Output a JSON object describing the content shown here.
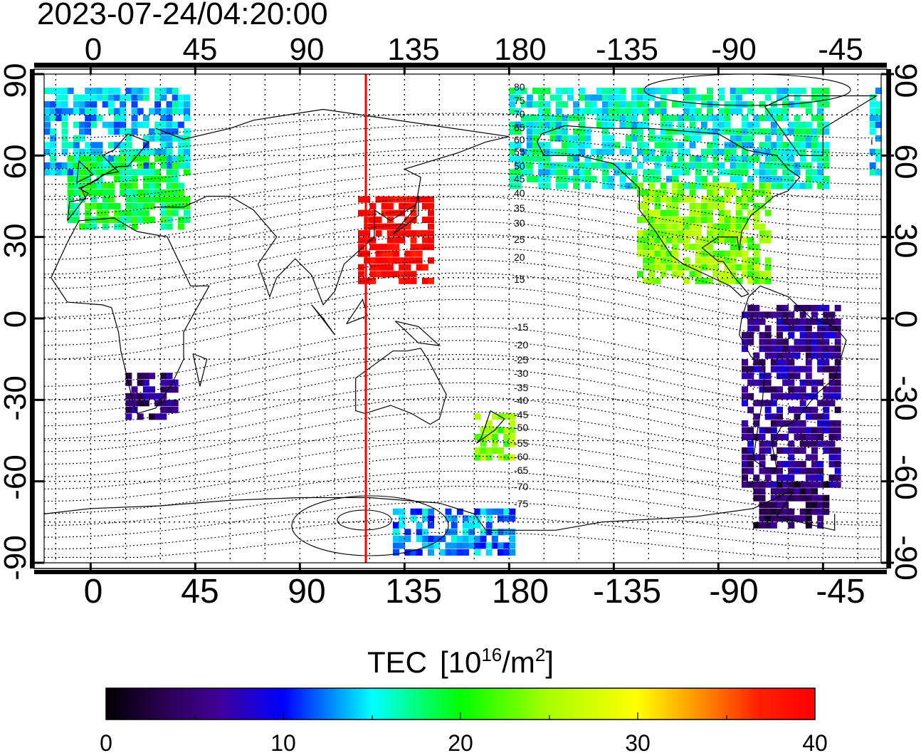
{
  "timestamp": "2023-07-24/04:20:00",
  "top_lon_ticks": [
    "0",
    "45",
    "90",
    "135",
    "180",
    "-135",
    "-90",
    "-45"
  ],
  "bottom_lon_ticks": [
    "0",
    "45",
    "90",
    "135",
    "180",
    "-135",
    "-90",
    "-45"
  ],
  "left_lat_ticks": [
    "90",
    "60",
    "30",
    "0",
    "-30",
    "-60",
    "-90"
  ],
  "right_lat_ticks": [
    "90",
    "60",
    "30",
    "0",
    "-30",
    "-60",
    "-90"
  ],
  "contour_labels_north": [
    "80",
    "75",
    "70",
    "65",
    "60",
    "55",
    "50",
    "45",
    "40",
    "35",
    "30",
    "25",
    "20",
    "15"
  ],
  "contour_labels_south": [
    "-15",
    "-20",
    "-25",
    "-30",
    "-35",
    "-40",
    "-45",
    "-50",
    "-55",
    "-60",
    "-65",
    "-70",
    "-75"
  ],
  "colorbar": {
    "title": "TEC",
    "unit_base": "[10",
    "unit_exp": "16",
    "unit_mid": "/m",
    "unit_exp2": "2",
    "unit_end": "]",
    "ticks": [
      "0",
      "10",
      "20",
      "30",
      "40"
    ],
    "min": 0,
    "max": 40
  },
  "marker_longitude_label": "115",
  "colors": {
    "marker": "#ff0000",
    "scale": [
      "#000000",
      "#3a0070",
      "#0000ff",
      "#00ffff",
      "#00ff00",
      "#ffff00",
      "#ff8000",
      "#ff0000"
    ]
  },
  "regions": [
    {
      "name": "arctic-europe",
      "lon": [
        -25,
        40
      ],
      "lat": [
        55,
        85
      ],
      "tec": 14
    },
    {
      "name": "europe",
      "lon": [
        -10,
        40
      ],
      "lat": [
        35,
        60
      ],
      "tec": 19
    },
    {
      "name": "north-america-north",
      "lon": [
        -180,
        -45
      ],
      "lat": [
        50,
        85
      ],
      "tec": 16
    },
    {
      "name": "north-america-south",
      "lon": [
        -125,
        -70
      ],
      "lat": [
        15,
        50
      ],
      "tec": 24
    },
    {
      "name": "east-asia",
      "lon": [
        115,
        145
      ],
      "lat": [
        15,
        45
      ],
      "tec": 40
    },
    {
      "name": "south-america",
      "lon": [
        -80,
        -40
      ],
      "lat": [
        -60,
        5
      ],
      "tec": 6
    },
    {
      "name": "southern-africa",
      "lon": [
        15,
        35
      ],
      "lat": [
        -35,
        -20
      ],
      "tec": 5
    },
    {
      "name": "new-zealand",
      "lon": [
        165,
        180
      ],
      "lat": [
        -50,
        -35
      ],
      "tec": 24
    },
    {
      "name": "antarctic-peninsula",
      "lon": [
        -75,
        -45
      ],
      "lat": [
        -75,
        -60
      ],
      "tec": 4
    },
    {
      "name": "antarctica",
      "lon": [
        130,
        180
      ],
      "lat": [
        -85,
        -70
      ],
      "tec": 13
    }
  ]
}
